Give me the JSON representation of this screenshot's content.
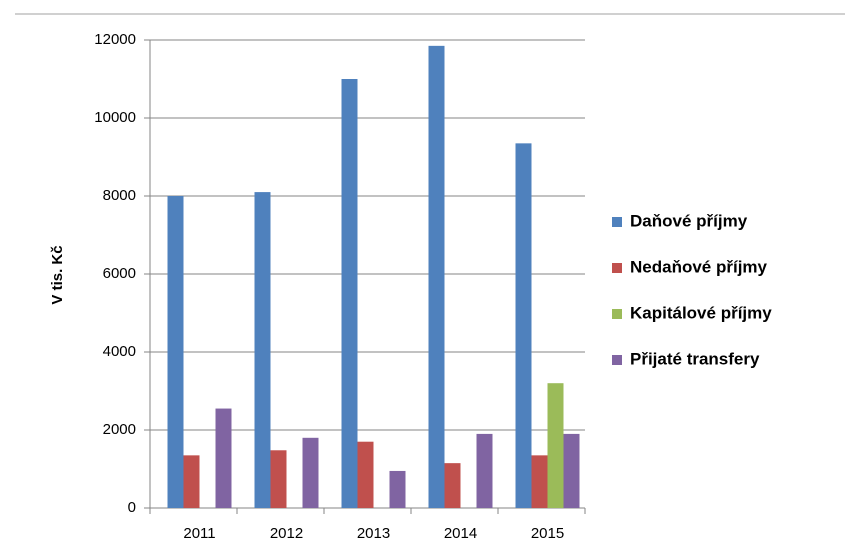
{
  "chart_data": {
    "type": "bar",
    "ylabel": "V tis. Kč",
    "categories": [
      "2011",
      "2012",
      "2013",
      "2014",
      "2015"
    ],
    "series": [
      {
        "name": "Daňové příjmy",
        "color": "#4f81bd",
        "values": [
          8000,
          8100,
          11000,
          11850,
          9350
        ]
      },
      {
        "name": "Nedaňové příjmy",
        "color": "#c0504d",
        "values": [
          1350,
          1480,
          1700,
          1150,
          1350
        ]
      },
      {
        "name": "Kapitálové příjmy",
        "color": "#9bbb59",
        "values": [
          0,
          0,
          0,
          0,
          3200
        ]
      },
      {
        "name": "Přijaté transfery",
        "color": "#8064a2",
        "values": [
          2550,
          1800,
          950,
          1900,
          1900
        ]
      }
    ],
    "ylim": [
      0,
      12000
    ],
    "yticks": [
      0,
      2000,
      4000,
      6000,
      8000,
      10000,
      12000
    ],
    "grid": true,
    "legend": "right"
  }
}
